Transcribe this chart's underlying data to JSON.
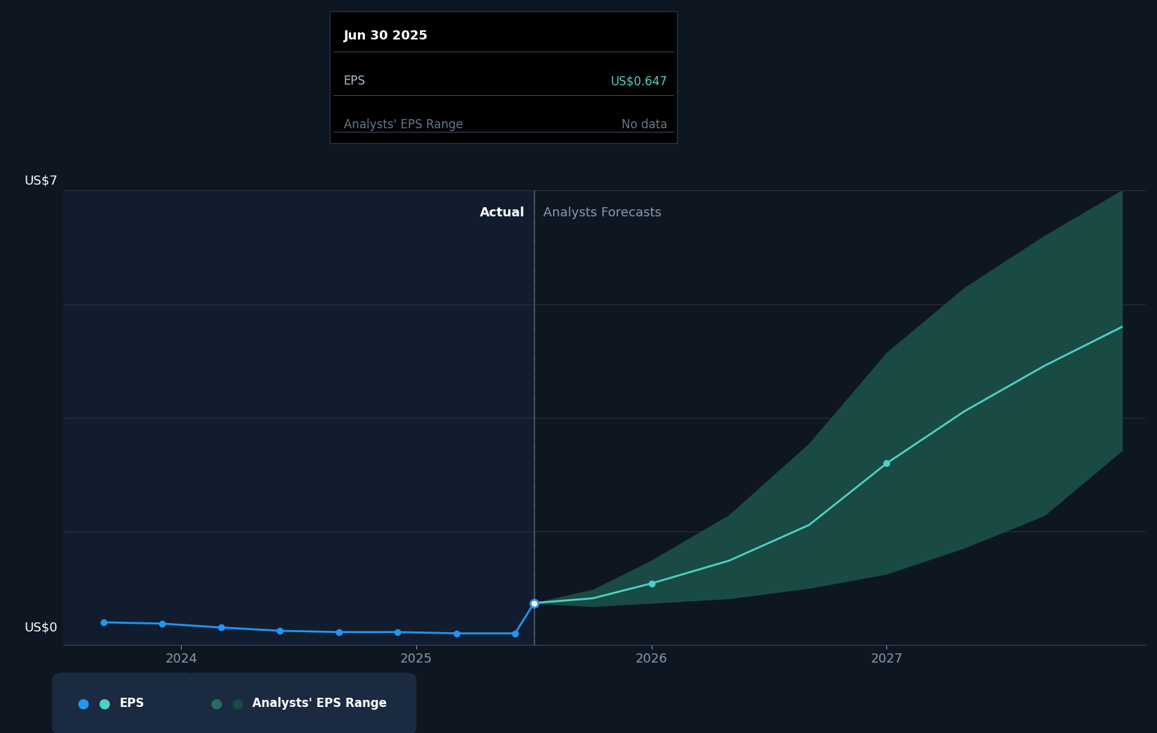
{
  "background_color": "#0e1621",
  "actual_bg_color": "#111d2e",
  "ylabel_top": "US$7",
  "ylabel_bottom": "US$0",
  "ylim": [
    0,
    7
  ],
  "grid_color": "#2a3347",
  "axis_color": "#3a4560",
  "text_color": "#8899aa",
  "text_color_bright": "#ffffff",
  "actual_label": "Actual",
  "forecast_label": "Analysts Forecasts",
  "eps_line_color": "#2196f3",
  "forecast_line_color": "#4dd0c4",
  "forecast_fill_color": "#1a4a44",
  "divider_x": 2025.5,
  "xmin": 2023.5,
  "xmax": 2028.1,
  "actual_eps_x": [
    2023.67,
    2023.92,
    2024.17,
    2024.42,
    2024.67,
    2024.92,
    2025.17,
    2025.42,
    2025.5
  ],
  "actual_eps_y": [
    0.35,
    0.33,
    0.27,
    0.22,
    0.2,
    0.2,
    0.18,
    0.18,
    0.647
  ],
  "forecast_x": [
    2025.5,
    2025.75,
    2026.0,
    2026.33,
    2026.67,
    2027.0,
    2027.33,
    2027.67,
    2028.0
  ],
  "forecast_y": [
    0.647,
    0.72,
    0.95,
    1.3,
    1.85,
    2.8,
    3.6,
    4.3,
    4.9
  ],
  "forecast_upper": [
    0.647,
    0.85,
    1.3,
    2.0,
    3.1,
    4.5,
    5.5,
    6.3,
    7.0
  ],
  "forecast_lower": [
    0.647,
    0.6,
    0.65,
    0.72,
    0.88,
    1.1,
    1.5,
    2.0,
    3.0
  ],
  "tooltip_date": "Jun 30 2025",
  "tooltip_eps_label": "EPS",
  "tooltip_eps": "US$0.647",
  "tooltip_eps_color": "#4dd0c4",
  "tooltip_range_label": "Analysts' EPS Range",
  "tooltip_range": "No data",
  "tooltip_range_color": "#667788",
  "highlight_point_x": 2025.5,
  "highlight_point_y": 0.647,
  "dot_2026_x": 2026.0,
  "dot_2026_y": 0.95,
  "dot_2027_x": 2027.0,
  "dot_2027_y": 2.8,
  "xtick_positions": [
    2024.0,
    2025.0,
    2026.0,
    2027.0
  ],
  "xtick_labels": [
    "2024",
    "2025",
    "2026",
    "2027"
  ],
  "legend_eps_label": "EPS",
  "legend_range_label": "Analysts' EPS Range",
  "gridlines_y": [
    0,
    1.75,
    3.5,
    5.25,
    7
  ]
}
